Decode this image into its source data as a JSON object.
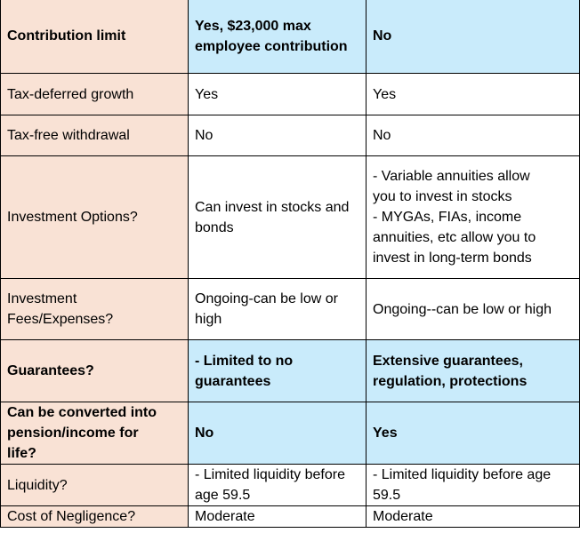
{
  "rows": [
    {
      "label": "Contribution limit",
      "col_a": "Yes, $23,000 max\nemployee contribution",
      "col_b": "No"
    },
    {
      "label": "Tax-deferred growth",
      "col_a": "Yes",
      "col_b": "Yes"
    },
    {
      "label": "Tax-free withdrawal",
      "col_a": "No",
      "col_b": "No"
    },
    {
      "label": "Investment Options?",
      "col_a": "Can invest in stocks and\nbonds",
      "col_b": "- Variable annuities allow\nyou to invest in stocks\n- MYGAs, FIAs, income\nannuities, etc allow you to\ninvest in long-term bonds"
    },
    {
      "label": "Investment\nFees/Expenses?",
      "col_a": "Ongoing-can be low or\nhigh",
      "col_b": "Ongoing--can be low or high"
    },
    {
      "label": "Guarantees?",
      "col_a": "- Limited to no\nguarantees",
      "col_b": "Extensive guarantees,\nregulation, protections"
    },
    {
      "label": "Can be converted into\npension/income for\nlife?",
      "col_a": "No",
      "col_b": "Yes"
    },
    {
      "label": "Liquidity?",
      "col_a": "- Limited liquidity before\nage 59.5",
      "col_b": "- Limited liquidity before age\n59.5"
    },
    {
      "label": "Cost of Negligence?",
      "col_a": "Moderate",
      "col_b": "Moderate"
    }
  ],
  "colors": {
    "label_bg": "#f9e2d5",
    "highlight_bg": "#c9ebfb",
    "plain_bg": "#ffffff",
    "border": "#000000"
  }
}
